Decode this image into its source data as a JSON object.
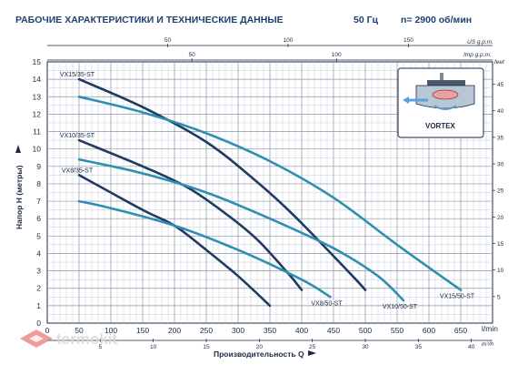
{
  "header": {
    "title": "РАБОЧИЕ ХАРАКТЕРИСТИКИ И ТЕХНИЧЕСКИЕ ДАННЫЕ",
    "freq": "50 Гц",
    "speed": "n= 2900 об/мин"
  },
  "vortex_label": "VORTEX",
  "watermark": "termokit",
  "chart_data": {
    "type": "line",
    "xlabel": "Производительность Q",
    "ylabel": "Напор H (метры)",
    "xlim": [
      0,
      700
    ],
    "ylim": [
      0,
      15
    ],
    "y2_unit": "feet",
    "y2_ticks": [
      "5",
      "10",
      "15",
      "20",
      "25",
      "30",
      "35",
      "40",
      "45"
    ],
    "x_unit": "l/min",
    "x_ticks": [
      "0",
      "50",
      "100",
      "150",
      "200",
      "250",
      "300",
      "350",
      "400",
      "450",
      "500",
      "550",
      "600",
      "650"
    ],
    "y_ticks": [
      "0",
      "1",
      "2",
      "3",
      "4",
      "5",
      "6",
      "7",
      "8",
      "9",
      "10",
      "11",
      "12",
      "13",
      "14",
      "15"
    ],
    "x_m3h_unit": "m³/h",
    "x_m3h_ticks": [
      "5",
      "10",
      "15",
      "20",
      "25",
      "30",
      "35",
      "40"
    ],
    "x_usgpm_unit": "US g.p.m.",
    "x_usgpm_ticks": [
      "50",
      "100",
      "150"
    ],
    "x_impgpm_unit": "Imp g.p.m.",
    "x_impgpm_ticks": [
      "50",
      "100"
    ],
    "grid": true,
    "series": [
      {
        "name": "VX15/35-ST",
        "color": "#203a63",
        "x": [
          50,
          150,
          250,
          330,
          390,
          480,
          500
        ],
        "y": [
          14,
          12.4,
          10.4,
          8.1,
          6.1,
          2.7,
          1.9
        ]
      },
      {
        "name": "VX15/50-ST",
        "color": "#2f8fb0",
        "x": [
          50,
          150,
          250,
          350,
          450,
          550,
          650
        ],
        "y": [
          13,
          12.1,
          10.9,
          9.3,
          7.2,
          4.5,
          1.9
        ]
      },
      {
        "name": "VX10/35-ST",
        "color": "#203a63",
        "x": [
          50,
          150,
          220,
          280,
          330,
          380,
          400
        ],
        "y": [
          10.5,
          9,
          7.8,
          6.3,
          4.8,
          2.8,
          1.9
        ]
      },
      {
        "name": "VX10/50-ST",
        "color": "#2f8fb0",
        "x": [
          50,
          150,
          250,
          350,
          450,
          520,
          560
        ],
        "y": [
          9.4,
          8.6,
          7.5,
          6,
          4.3,
          2.7,
          1.3
        ]
      },
      {
        "name": "VX8/35-ST",
        "color": "#203a63",
        "x": [
          50,
          150,
          200,
          250,
          300,
          350
        ],
        "y": [
          8.5,
          6.5,
          5.6,
          4.2,
          2.7,
          1
        ]
      },
      {
        "name": "VX8/50-ST",
        "color": "#2f8fb0",
        "x": [
          50,
          100,
          200,
          300,
          400,
          445
        ],
        "y": [
          7,
          6.6,
          5.6,
          4.2,
          2.5,
          1.5
        ]
      }
    ]
  }
}
